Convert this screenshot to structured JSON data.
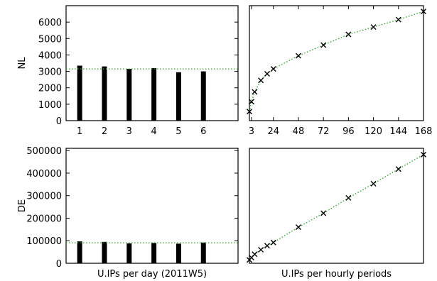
{
  "chart_data": [
    {
      "id": "nl-daily",
      "type": "bar",
      "row_label": "NL",
      "categories": [
        "1",
        "2",
        "3",
        "4",
        "5",
        "6"
      ],
      "values": [
        3350,
        3300,
        3150,
        3200,
        2950,
        3000
      ],
      "reference_line": 3150,
      "ylim": [
        0,
        7000
      ],
      "yticks": [
        "0",
        "1000",
        "2000",
        "3000",
        "4000",
        "5000",
        "6000"
      ],
      "xlabel": ""
    },
    {
      "id": "nl-hourly",
      "type": "scatter",
      "x": [
        1,
        3,
        6,
        12,
        18,
        24,
        48,
        72,
        96,
        120,
        144,
        168
      ],
      "y": [
        550,
        1150,
        1750,
        2450,
        2850,
        3150,
        3950,
        4600,
        5250,
        5700,
        6150,
        6650
      ],
      "xlim": [
        1,
        168
      ],
      "ylim": [
        0,
        7000
      ],
      "xticks": [
        "3",
        "24",
        "48",
        "72",
        "96",
        "120",
        "144",
        "168"
      ],
      "xlabel": ""
    },
    {
      "id": "de-daily",
      "type": "bar",
      "row_label": "DE",
      "categories": [
        "1",
        "2",
        "3",
        "4",
        "5",
        "6"
      ],
      "values": [
        97000,
        95000,
        88000,
        90000,
        87000,
        92000
      ],
      "reference_line": 91000,
      "ylim": [
        0,
        510000
      ],
      "yticks": [
        "0",
        "100000",
        "200000",
        "300000",
        "400000",
        "500000"
      ],
      "xlabel": "U.IPs per day (2011W5)"
    },
    {
      "id": "de-hourly",
      "type": "scatter",
      "x": [
        1,
        3,
        6,
        12,
        18,
        24,
        48,
        72,
        96,
        120,
        144,
        168
      ],
      "y": [
        15000,
        25000,
        40000,
        60000,
        78000,
        92000,
        160000,
        222000,
        290000,
        353000,
        418000,
        482000
      ],
      "xlim": [
        1,
        168
      ],
      "ylim": [
        0,
        510000
      ],
      "xticks": [],
      "xlabel": "U.IPs per hourly periods"
    }
  ],
  "colors": {
    "bar": "#000000",
    "fit_line": "#2ca02c",
    "marker": "#000000",
    "axes": "#000000"
  }
}
